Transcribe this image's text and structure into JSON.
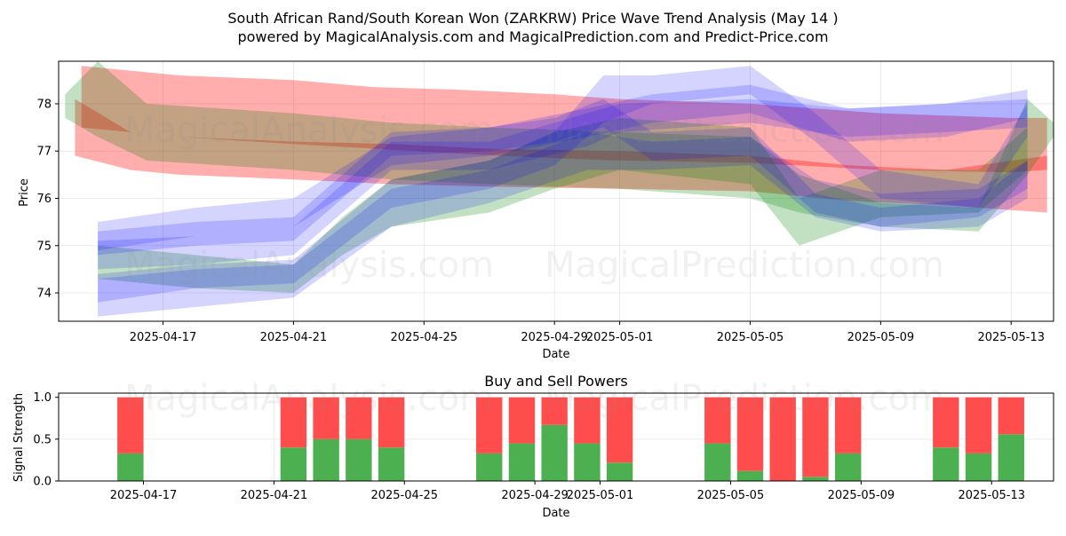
{
  "title_line1": "South African Rand/South Korean Won (ZARKRW) Price Wave Trend Analysis (May 14 )",
  "title_line2": "powered by MagicalAnalysis.com and MagicalPrediction.com and Predict-Price.com",
  "watermarks": [
    "MagicalAnalysis.com",
    "MagicalPrediction.com"
  ],
  "chart_data": [
    {
      "type": "line",
      "title": "",
      "xlabel": "Date",
      "ylabel": "Price",
      "grid": true,
      "x_start": "2025-04-14",
      "x_end": "2025-05-15",
      "xlim": [
        -0.2,
        30.3
      ],
      "ylim": [
        73.4,
        78.9
      ],
      "x_ticks": [
        {
          "label": "2025-04-17",
          "day": 3
        },
        {
          "label": "2025-04-21",
          "day": 7
        },
        {
          "label": "2025-04-25",
          "day": 11
        },
        {
          "label": "2025-04-29",
          "day": 15
        },
        {
          "label": "2025-05-01",
          "day": 17
        },
        {
          "label": "2025-05-05",
          "day": 21
        },
        {
          "label": "2025-05-09",
          "day": 25
        },
        {
          "label": "2025-05-13",
          "day": 29
        }
      ],
      "y_ticks": [
        74,
        75,
        76,
        77,
        78
      ],
      "series": [
        {
          "name": "red-band-upper",
          "color": "#ff0000",
          "x": [
            0.5,
            3.5,
            7,
            9.5,
            12,
            15,
            17,
            21,
            25,
            29,
            30.1
          ],
          "lower": [
            77.5,
            77.3,
            77.15,
            77.05,
            76.95,
            76.85,
            76.8,
            76.75,
            76.6,
            76.55,
            76.6
          ],
          "upper": [
            78.8,
            78.6,
            78.5,
            78.35,
            78.3,
            78.2,
            78.1,
            78.0,
            77.8,
            77.7,
            77.7
          ]
        },
        {
          "name": "red-band-lower",
          "color": "#ff0000",
          "x": [
            0.3,
            2,
            3.5,
            7,
            10,
            13,
            17,
            21,
            24,
            27,
            30.1
          ],
          "lower": [
            76.9,
            76.6,
            76.5,
            76.4,
            76.3,
            76.25,
            76.2,
            76.15,
            75.95,
            75.85,
            75.7
          ],
          "upper": [
            78.1,
            77.4,
            77.3,
            77.2,
            77.15,
            77.05,
            77.0,
            76.9,
            76.7,
            76.6,
            76.9
          ]
        },
        {
          "name": "green-band-1",
          "color": "#008000",
          "x": [
            0,
            1,
            2.5,
            7,
            10,
            13,
            17,
            21,
            22.5,
            25,
            28,
            29.5,
            30.3
          ],
          "lower": [
            77.7,
            77.3,
            76.8,
            76.6,
            76.4,
            76.3,
            76.2,
            76.0,
            75.7,
            75.4,
            75.3,
            76.5,
            77.3
          ],
          "upper": [
            78.2,
            78.9,
            78.0,
            77.8,
            77.6,
            77.5,
            77.4,
            77.3,
            76.5,
            75.9,
            75.8,
            78.1,
            77.6
          ]
        },
        {
          "name": "green-band-2",
          "color": "#008000",
          "x": [
            1,
            4,
            7,
            8.5,
            10,
            13,
            15,
            17,
            21,
            22.5,
            25,
            28,
            29.5
          ],
          "lower": [
            74.3,
            74.1,
            74.0,
            74.8,
            75.4,
            75.7,
            76.2,
            76.6,
            76.3,
            75.0,
            75.6,
            75.7,
            76.6
          ],
          "upper": [
            75.0,
            74.8,
            74.6,
            75.6,
            76.4,
            76.8,
            77.4,
            77.7,
            77.5,
            76.0,
            76.6,
            76.6,
            77.5
          ]
        },
        {
          "name": "blue-band-1",
          "color": "#0000ff",
          "x": [
            1,
            4,
            7,
            10,
            13,
            15,
            16.5,
            18,
            21,
            23,
            25,
            28,
            29.5
          ],
          "lower": [
            74.8,
            75.0,
            75.1,
            76.9,
            77.0,
            77.2,
            77.5,
            76.8,
            76.9,
            75.7,
            75.4,
            75.6,
            76.2
          ],
          "upper": [
            75.3,
            75.5,
            75.6,
            77.4,
            77.5,
            77.7,
            78.1,
            77.4,
            77.5,
            76.1,
            75.8,
            76.0,
            76.8
          ]
        },
        {
          "name": "blue-band-2",
          "color": "#0000ff",
          "x": [
            1,
            4,
            7,
            10,
            13,
            15,
            16.5,
            18,
            21,
            23,
            25,
            28,
            29.5
          ],
          "lower": [
            73.8,
            74.1,
            74.2,
            75.8,
            76.2,
            76.7,
            77.6,
            78.0,
            78.2,
            77.2,
            76.0,
            75.8,
            77.3
          ],
          "upper": [
            74.4,
            74.6,
            74.7,
            76.4,
            76.8,
            77.4,
            78.6,
            78.6,
            78.8,
            77.8,
            76.6,
            76.3,
            78.0
          ]
        },
        {
          "name": "blue-band-3",
          "color": "#0000ff",
          "x": [
            1,
            4,
            7,
            10,
            13,
            16,
            17,
            21,
            24,
            27,
            29.5
          ],
          "lower": [
            74.5,
            74.6,
            74.8,
            76.6,
            76.6,
            77.1,
            77.4,
            77.6,
            77.3,
            77.4,
            77.5
          ],
          "upper": [
            75.1,
            75.2,
            75.4,
            77.2,
            77.2,
            77.8,
            78.0,
            78.1,
            77.9,
            78.0,
            78.1
          ]
        },
        {
          "name": "blue-band-4",
          "color": "#0000ff",
          "x": [
            1,
            4,
            7,
            10,
            13,
            16,
            18,
            21,
            23,
            25,
            28,
            29.5
          ],
          "lower": [
            73.5,
            73.7,
            73.9,
            75.4,
            75.9,
            76.6,
            76.6,
            76.7,
            75.6,
            75.3,
            75.4,
            76.0
          ],
          "upper": [
            74.3,
            74.5,
            74.6,
            76.2,
            76.6,
            77.4,
            77.2,
            77.3,
            76.4,
            76.1,
            76.2,
            76.8
          ]
        },
        {
          "name": "blue-band-5",
          "color": "#0000ff",
          "x": [
            1,
            4,
            7,
            10,
            13,
            16,
            18,
            21,
            24,
            27,
            29.5
          ],
          "lower": [
            74.9,
            75.2,
            75.4,
            76.7,
            76.9,
            77.3,
            77.6,
            77.8,
            77.2,
            77.3,
            77.7
          ],
          "upper": [
            75.5,
            75.8,
            76.0,
            77.3,
            77.5,
            77.9,
            78.2,
            78.4,
            77.9,
            78.0,
            78.3
          ]
        }
      ]
    },
    {
      "type": "bar",
      "title": "Buy and Sell Powers",
      "xlabel": "Date",
      "ylabel": "Signal Strength",
      "grid": true,
      "xlim": [
        -0.2,
        30.3
      ],
      "ylim": [
        0,
        1.05
      ],
      "y_ticks": [
        "0.0",
        "0.5",
        "1.0"
      ],
      "x_ticks": [
        {
          "label": "2025-04-17",
          "day": 3
        },
        {
          "label": "2025-04-21",
          "day": 7
        },
        {
          "label": "2025-04-25",
          "day": 11
        },
        {
          "label": "2025-04-29",
          "day": 15
        },
        {
          "label": "2025-05-01",
          "day": 17
        },
        {
          "label": "2025-05-05",
          "day": 21
        },
        {
          "label": "2025-05-09",
          "day": 25
        },
        {
          "label": "2025-05-13",
          "day": 29
        }
      ],
      "buy_color": "#4caf50",
      "sell_color": "#ff4d4d",
      "days": [
        2,
        7,
        8,
        9,
        10,
        13,
        14,
        15,
        16,
        17,
        20,
        21,
        22,
        23,
        24,
        27,
        28,
        29
      ],
      "buy_values": [
        0.33,
        0.4,
        0.5,
        0.5,
        0.4,
        0.33,
        0.45,
        0.67,
        0.45,
        0.22,
        0.45,
        0.12,
        0.0,
        0.05,
        0.33,
        0.4,
        0.33,
        0.56
      ],
      "sell_values": [
        0.67,
        0.6,
        0.5,
        0.5,
        0.6,
        0.67,
        0.55,
        0.33,
        0.55,
        0.78,
        0.55,
        0.88,
        1.0,
        0.95,
        0.67,
        0.6,
        0.67,
        0.44
      ]
    }
  ]
}
